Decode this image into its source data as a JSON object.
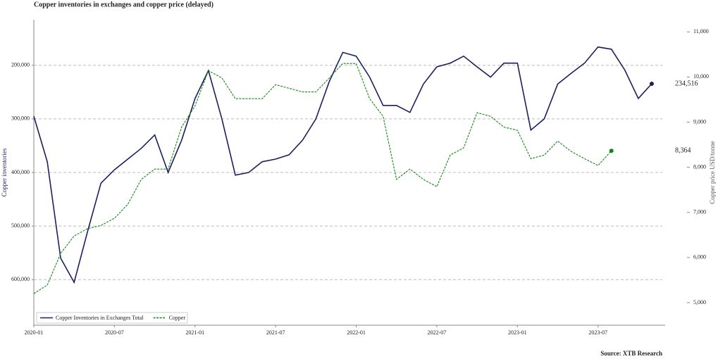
{
  "chart_data": {
    "type": "line",
    "title": "Copper inventories in exchanges and copper price (delayed)",
    "ylabel": "Copper inventories",
    "y2label": "Copper price USD/tonne",
    "source": "Source: XTB Research",
    "x": [
      "2020-01",
      "2020-02",
      "2020-03",
      "2020-04",
      "2020-05",
      "2020-06",
      "2020-07",
      "2020-08",
      "2020-09",
      "2020-10",
      "2020-11",
      "2020-12",
      "2021-01",
      "2021-02",
      "2021-03",
      "2021-04",
      "2021-05",
      "2021-06",
      "2021-07",
      "2021-08",
      "2021-09",
      "2021-10",
      "2021-11",
      "2021-12",
      "2022-01",
      "2022-02",
      "2022-03",
      "2022-04",
      "2022-05",
      "2022-06",
      "2022-07",
      "2022-08",
      "2022-09",
      "2022-10",
      "2022-11",
      "2022-12",
      "2023-01",
      "2023-02",
      "2023-03",
      "2023-04",
      "2023-05",
      "2023-06",
      "2023-07",
      "2023-08",
      "2023-09",
      "2023-10",
      "2023-11"
    ],
    "series": [
      {
        "name": "Copper Inventories in Exchanges Total",
        "color": "#1b1f5f",
        "dash": false,
        "axis": "y",
        "end_label": "234,516",
        "values": [
          295000,
          380000,
          560000,
          605000,
          510000,
          420000,
          395000,
          375000,
          355000,
          330000,
          400000,
          340000,
          262000,
          210000,
          300000,
          405000,
          400000,
          380000,
          375000,
          367000,
          340000,
          300000,
          230000,
          176000,
          183000,
          222000,
          275000,
          275000,
          288000,
          235000,
          203000,
          196000,
          183000,
          203000,
          222000,
          196000,
          196000,
          321000,
          300000,
          235000,
          215000,
          196000,
          166000,
          170000,
          209000,
          262000,
          234516
        ]
      },
      {
        "name": "Copper",
        "color": "#118811",
        "dash": true,
        "axis": "y2",
        "end_label": "8,364",
        "values": [
          5200,
          5390,
          6090,
          6480,
          6640,
          6710,
          6870,
          7180,
          7730,
          7960,
          7960,
          8890,
          9360,
          10140,
          9980,
          9520,
          9520,
          9520,
          9830,
          9750,
          9670,
          9670,
          9980,
          10300,
          10300,
          9520,
          9130,
          7730,
          7960,
          7730,
          7570,
          8270,
          8430,
          9210,
          9130,
          8890,
          8820,
          8190,
          8270,
          8580,
          8350,
          8190,
          8040,
          8364,
          null,
          null,
          null
        ]
      }
    ],
    "xlim": [
      "2020-01",
      "2023-12"
    ],
    "xticks": [
      "2020-01",
      "2020-07",
      "2021-01",
      "2021-07",
      "2022-01",
      "2022-07",
      "2023-01",
      "2023-07"
    ],
    "ylim": [
      685000,
      115000
    ],
    "yticks": [
      {
        "value": 200000,
        "label": "200,000"
      },
      {
        "value": 300000,
        "label": "300,000"
      },
      {
        "value": 400000,
        "label": "400,000"
      },
      {
        "value": 500000,
        "label": "500,000"
      },
      {
        "value": 600000,
        "label": "600,000"
      }
    ],
    "y2lim": [
      4500,
      11270
    ],
    "y2ticks": [
      {
        "value": 5000,
        "label": "5,000"
      },
      {
        "value": 6000,
        "label": "6,000"
      },
      {
        "value": 7000,
        "label": "7,000"
      },
      {
        "value": 8000,
        "label": "8,000"
      },
      {
        "value": 9000,
        "label": "9,000"
      },
      {
        "value": 10000,
        "label": "10,000"
      },
      {
        "value": 11000,
        "label": "11,000"
      }
    ],
    "grid": true,
    "legend": "lower left"
  }
}
